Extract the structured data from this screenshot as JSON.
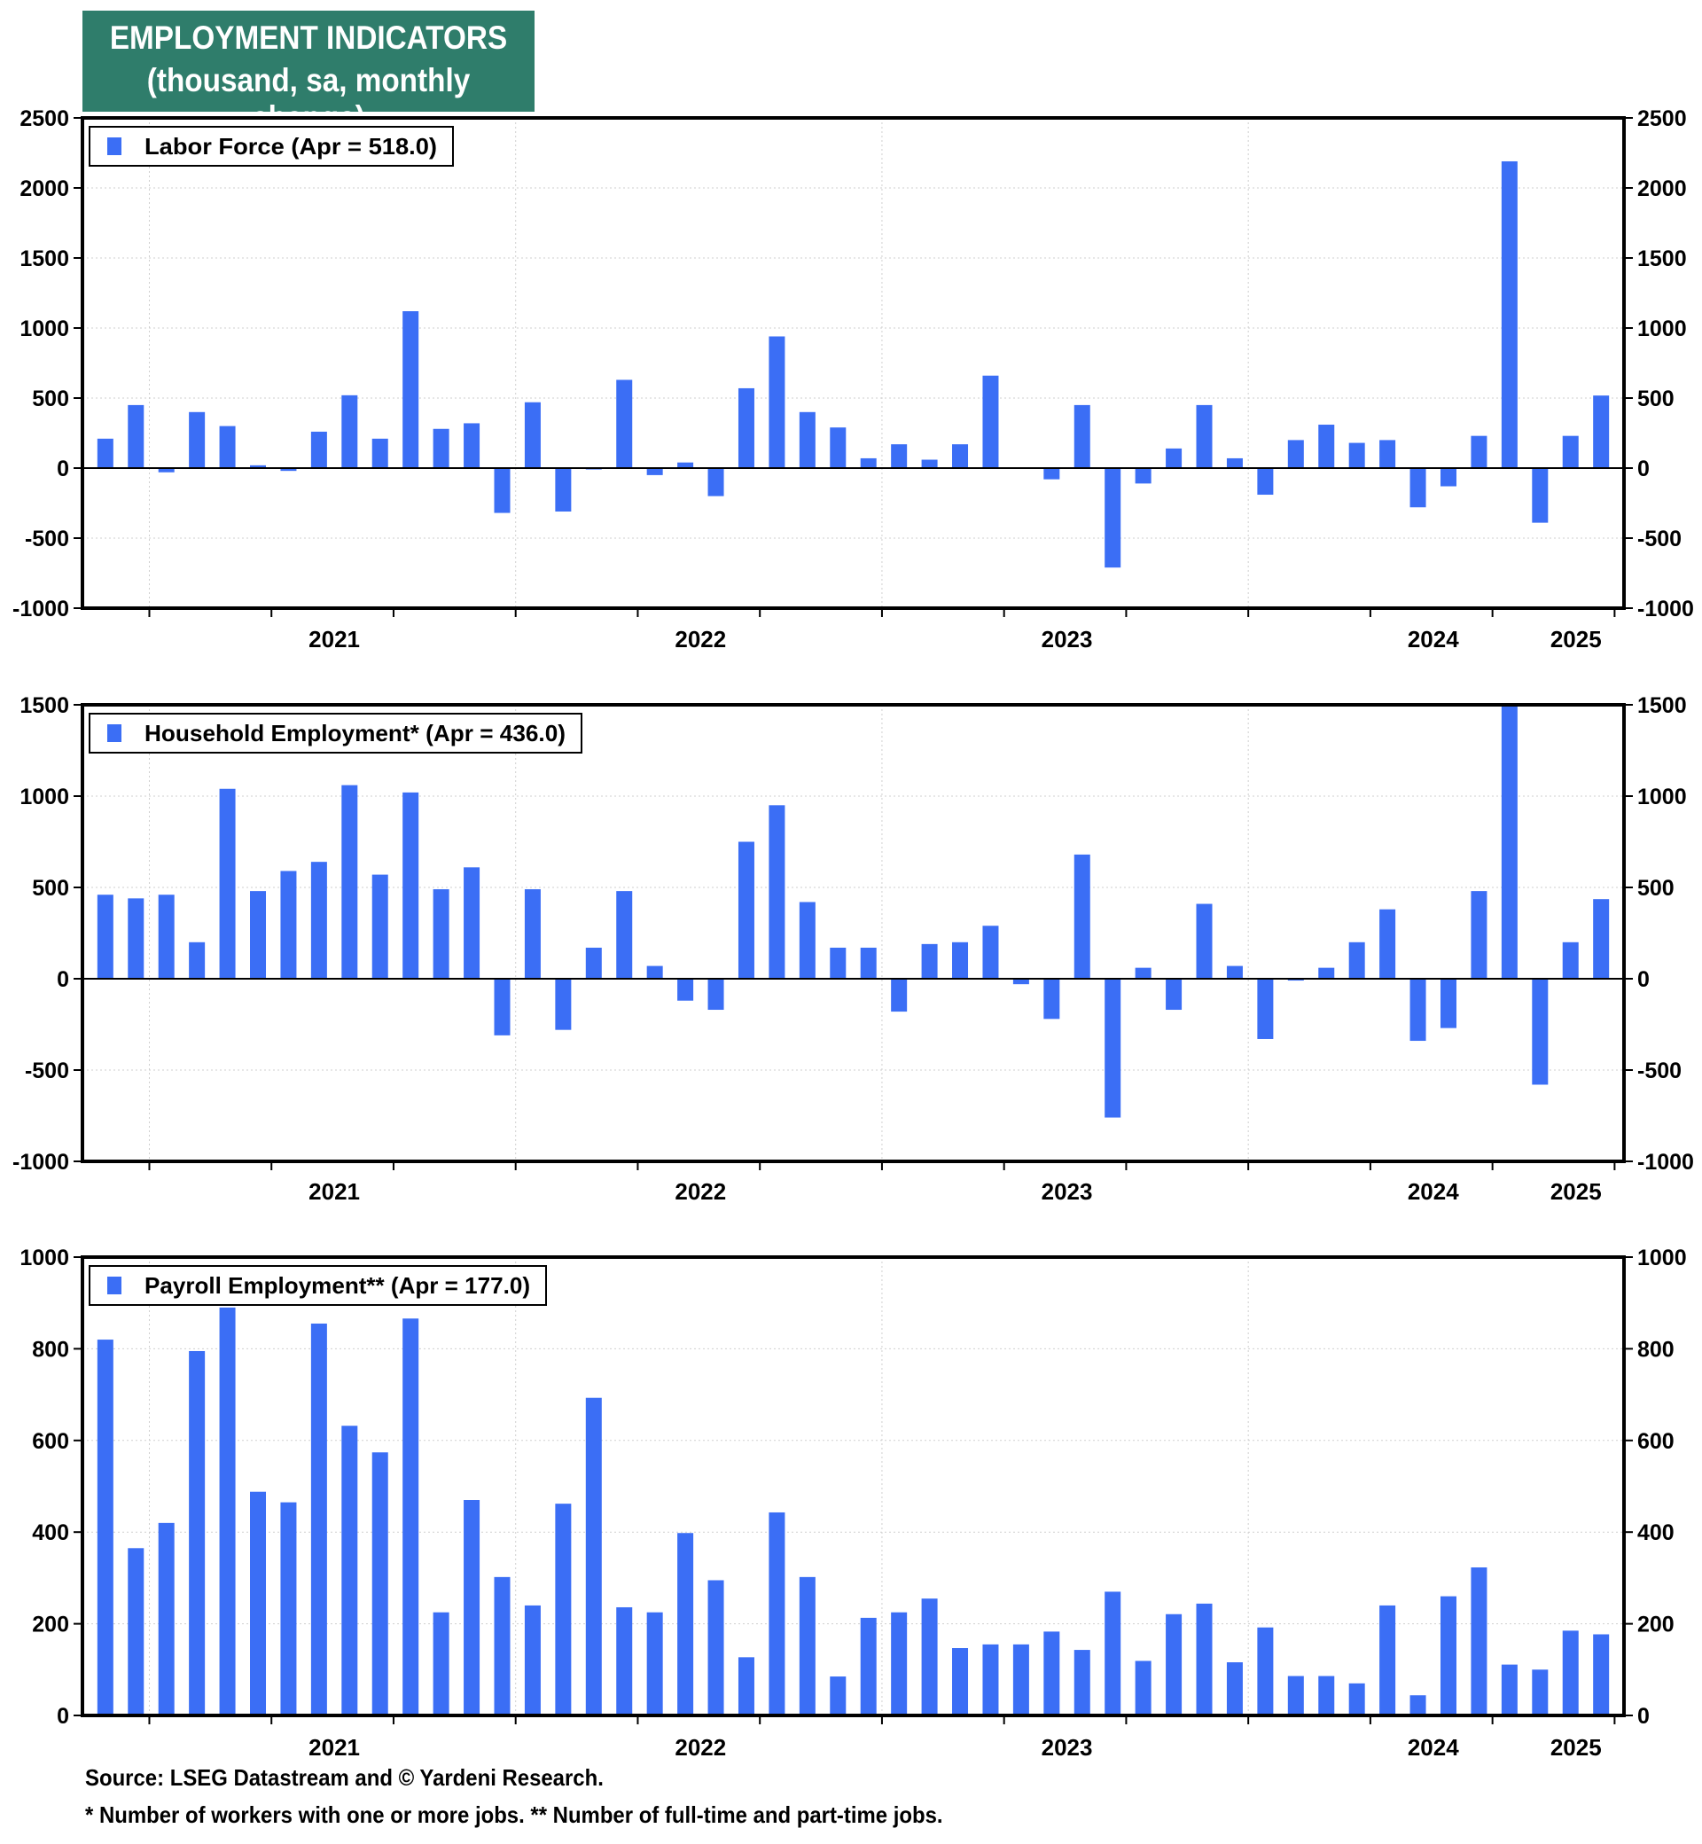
{
  "title": {
    "line1": "EMPLOYMENT INDICATORS",
    "line2": "(thousand, sa, monthly change)"
  },
  "colors": {
    "bar": "#3b6ef5",
    "title_bg": "#2f7d6b"
  },
  "chart_data": [
    {
      "type": "bar",
      "legend": "Labor Force (Apr = 518.0)",
      "x_start": "2020-11",
      "x_end": "2025-04",
      "year_labels": [
        "2021",
        "2022",
        "2023",
        "2024",
        "2025"
      ],
      "ylim": [
        -1000,
        2500
      ],
      "yticks": [
        -1000,
        -500,
        0,
        500,
        1000,
        1500,
        2000,
        2500
      ],
      "grid": true,
      "values": [
        210,
        450,
        -30,
        400,
        300,
        20,
        -20,
        260,
        520,
        210,
        1120,
        280,
        320,
        -320,
        470,
        -310,
        -10,
        630,
        -50,
        40,
        -200,
        570,
        940,
        400,
        290,
        70,
        170,
        60,
        170,
        660,
        0,
        -80,
        450,
        -710,
        -110,
        140,
        450,
        70,
        -190,
        200,
        310,
        180,
        200,
        -280,
        -130,
        230,
        2190,
        -390,
        230,
        518
      ]
    },
    {
      "type": "bar",
      "legend": "Household Employment* (Apr = 436.0)",
      "x_start": "2020-11",
      "x_end": "2025-04",
      "year_labels": [
        "2021",
        "2022",
        "2023",
        "2024",
        "2025"
      ],
      "ylim": [
        -1000,
        1500
      ],
      "yticks": [
        -1000,
        -500,
        0,
        500,
        1000,
        1500
      ],
      "grid": true,
      "values": [
        460,
        440,
        460,
        200,
        1040,
        480,
        590,
        640,
        1060,
        570,
        1020,
        490,
        610,
        -310,
        490,
        -280,
        170,
        480,
        70,
        -120,
        -170,
        750,
        950,
        420,
        170,
        170,
        -180,
        190,
        200,
        290,
        -30,
        -220,
        680,
        -760,
        60,
        -170,
        410,
        70,
        -330,
        -10,
        60,
        200,
        380,
        -340,
        -270,
        480,
        1500,
        -580,
        200,
        436
      ]
    },
    {
      "type": "bar",
      "legend": "Payroll Employment** (Apr = 177.0)",
      "x_start": "2020-11",
      "x_end": "2025-04",
      "year_labels": [
        "2021",
        "2022",
        "2023",
        "2024",
        "2025"
      ],
      "ylim": [
        0,
        1000
      ],
      "yticks": [
        0,
        200,
        400,
        600,
        800,
        1000
      ],
      "grid": true,
      "values": [
        820,
        365,
        420,
        795,
        890,
        488,
        465,
        855,
        632,
        574,
        866,
        225,
        470,
        302,
        240,
        462,
        693,
        236,
        225,
        398,
        295,
        127,
        443,
        302,
        85,
        213,
        225,
        255,
        147,
        155,
        155,
        183,
        143,
        270,
        119,
        221,
        244,
        116,
        192,
        86,
        86,
        70,
        240,
        44,
        260,
        323,
        111,
        100,
        185,
        177
      ]
    }
  ],
  "footer": {
    "source": "Source: LSEG Datastream and © Yardeni Research.",
    "note": "* Number of workers with one or more jobs. ** Number of full-time and part-time jobs."
  }
}
